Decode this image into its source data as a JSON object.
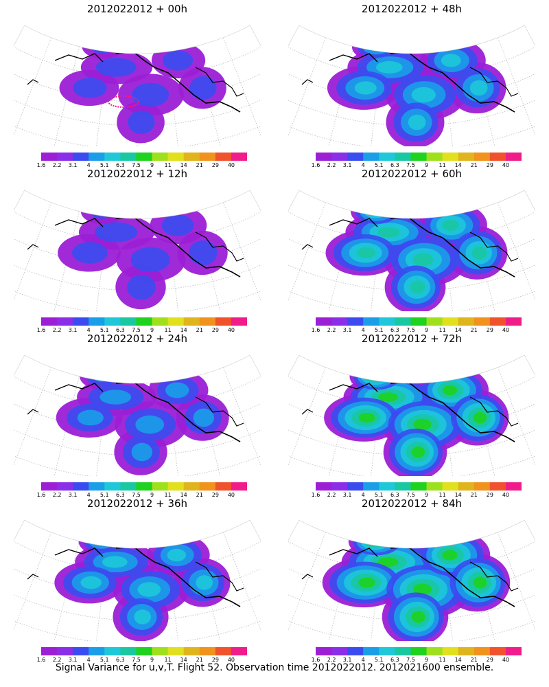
{
  "panels": [
    {
      "title": "2012022012 + 00h"
    },
    {
      "title": "2012022012 + 48h"
    },
    {
      "title": "2012022012 + 12h"
    },
    {
      "title": "2012022012 + 60h"
    },
    {
      "title": "2012022012 + 24h"
    },
    {
      "title": "2012022012 + 72h"
    },
    {
      "title": "2012022012 + 36h"
    },
    {
      "title": "2012022012 + 84h"
    }
  ],
  "colorbar": {
    "colors": [
      "#9c1fd6",
      "#8a2ee8",
      "#3a4cf0",
      "#1a9ee8",
      "#1ec8d8",
      "#19c8a0",
      "#1ed21e",
      "#9ee01c",
      "#e0e01c",
      "#e0b41c",
      "#f0921c",
      "#f0522c",
      "#f01c8a"
    ],
    "labels": [
      "1.6",
      "2.2",
      "3.1",
      "4",
      "5.1",
      "6.3",
      "7.5",
      "9",
      "11",
      "14",
      "21",
      "29",
      "40"
    ]
  },
  "caption": "Signal Variance for u,v,T. Flight 52. Observation time 2012022012. 2012021600 ensemble."
}
